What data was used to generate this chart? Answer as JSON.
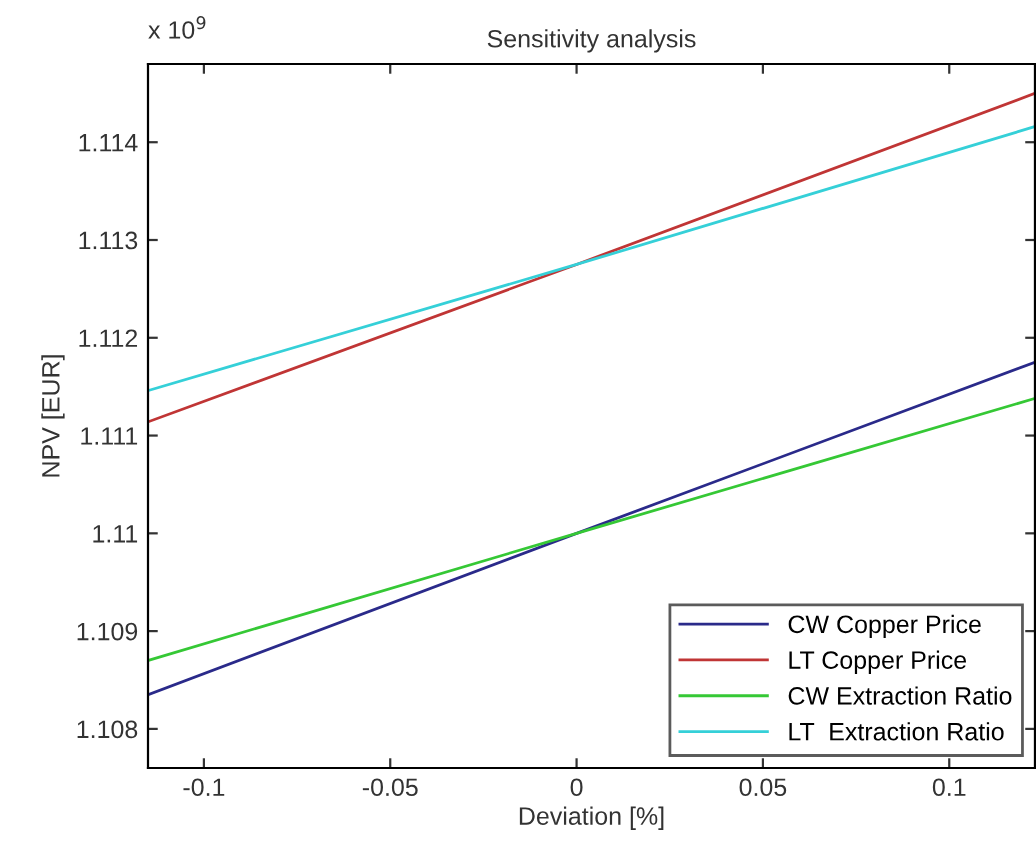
{
  "chart_data": {
    "type": "line",
    "title": "Sensitivity analysis",
    "xlabel": "Deviation [%]",
    "ylabel": "NPV [EUR]",
    "annotations": [
      "x 10$^{9}$"
    ],
    "xlim": [
      -0.115,
      0.123
    ],
    "xticks": [
      -0.1,
      -0.05,
      0,
      0.05,
      0.1
    ],
    "ylim": [
      1.1076,
      1.1148
    ],
    "yticks": [
      1.108,
      1.109,
      1.11,
      1.111,
      1.112,
      1.113,
      1.114
    ],
    "x": [
      -0.115,
      0,
      0.123
    ],
    "series": [
      {
        "name": "CW Copper Price",
        "color": "#2a2a8a",
        "values": [
          1.10835,
          1.11,
          1.11175
        ]
      },
      {
        "name": "LT Copper Price",
        "color": "#c03535",
        "values": [
          1.11114,
          1.11275,
          1.1145
        ]
      },
      {
        "name": "CW Extraction Ratio",
        "color": "#35c835",
        "values": [
          1.1087,
          1.11,
          1.11138
        ]
      },
      {
        "name": "LT  Extraction Ratio",
        "color": "#35d0d8",
        "values": [
          1.11146,
          1.11275,
          1.11416
        ]
      }
    ],
    "legend": "lower right",
    "grid": false,
    "marker": "none",
    "line_style": "solid"
  }
}
